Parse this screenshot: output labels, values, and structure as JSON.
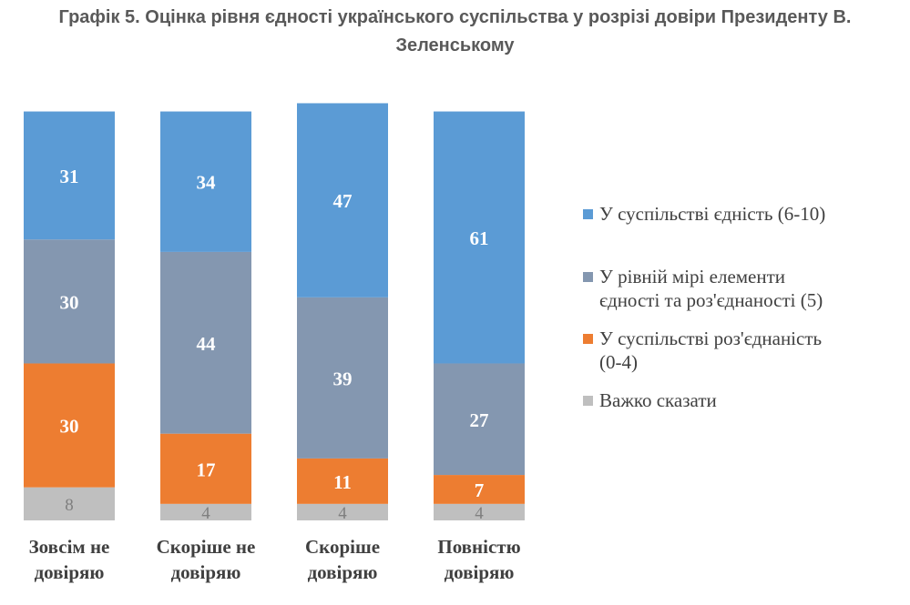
{
  "title": {
    "line1": "Графік 5. Оцінка рівня єдності українського суспільства у розрізі довіри Президенту В.",
    "line2": "Зеленському"
  },
  "chart_data": {
    "type": "bar",
    "stacked": true,
    "percent": true,
    "categories": [
      [
        "Зовсім не",
        "довіряю"
      ],
      [
        "Скоріше не",
        "довіряю"
      ],
      [
        "Скоріше",
        "довіряю"
      ],
      [
        "Повністю",
        "довіряю"
      ]
    ],
    "series": [
      {
        "name": "Важко сказати",
        "values": [
          8,
          4,
          4,
          4
        ],
        "color": "#bfbfbf",
        "label_color": "#7f7f7f"
      },
      {
        "name": "У суспільстві роз'єднаність (0-4)",
        "values": [
          30,
          17,
          11,
          7
        ],
        "color": "#ed7d31",
        "label_color": "#ffffff"
      },
      {
        "name": "У рівній мірі елементи єдності та роз'єднаності (5)",
        "values": [
          30,
          44,
          39,
          27
        ],
        "color": "#8497b0",
        "label_color": "#ffffff"
      },
      {
        "name": "У суспільстві єдність (6-10)",
        "values": [
          31,
          34,
          47,
          61
        ],
        "color": "#5b9bd5",
        "label_color": "#ffffff"
      }
    ],
    "legend": {
      "position": "right",
      "order": [
        3,
        2,
        1,
        0
      ],
      "lines": [
        [
          "У суспільстві єдність (6-10)"
        ],
        [
          "У рівній мірі елементи",
          "єдності та роз'єднаності (5)"
        ],
        [
          "У суспільстві роз'єднаність",
          "(0-4)"
        ],
        [
          "Важко сказати"
        ]
      ]
    },
    "ylim": [
      0,
      100
    ],
    "grid": false,
    "xlabel": "",
    "ylabel": ""
  }
}
